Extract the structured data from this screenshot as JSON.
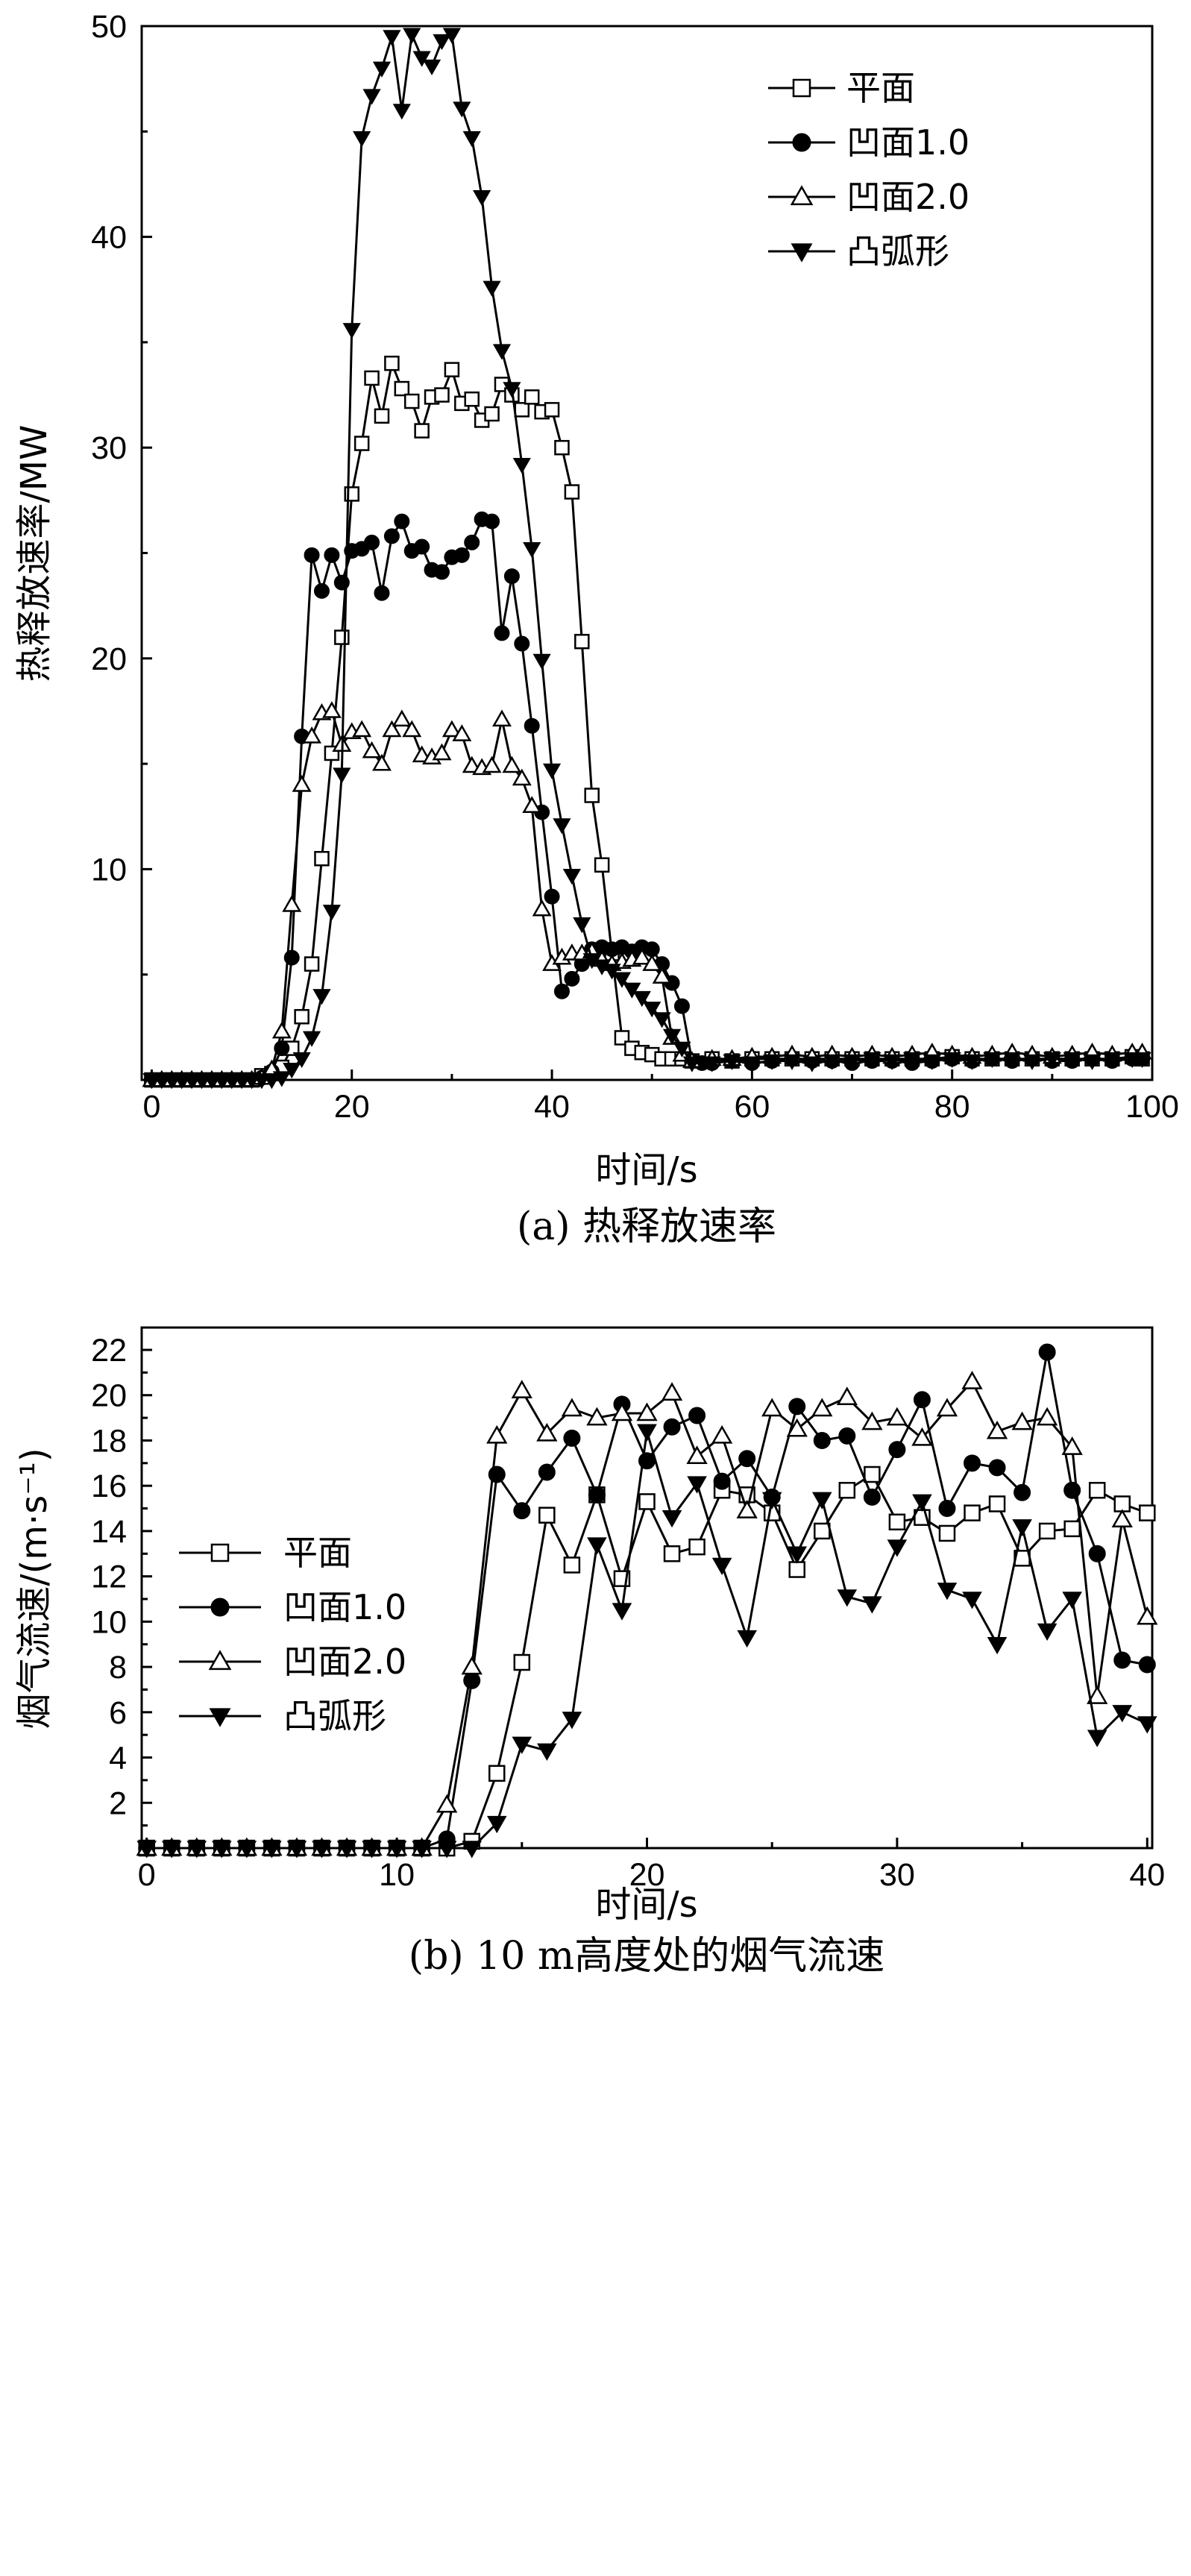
{
  "chart_data": [
    {
      "type": "line",
      "caption": "(a) 热释放速率",
      "xlabel": "时间/s",
      "ylabel": "热释放速率/MW",
      "xlim": [
        -1,
        100
      ],
      "ylim": [
        0,
        50
      ],
      "xticks": [
        0,
        20,
        40,
        60,
        80,
        100
      ],
      "yticks": [
        10,
        20,
        30,
        40,
        50
      ],
      "legend_position": "top-right",
      "series": [
        {
          "name": "平面",
          "marker": "open-square",
          "x": [
            0,
            1,
            2,
            3,
            4,
            5,
            6,
            7,
            8,
            9,
            10,
            11,
            12,
            13,
            14,
            15,
            16,
            17,
            18,
            19,
            20,
            21,
            22,
            23,
            24,
            25,
            26,
            27,
            28,
            29,
            30,
            31,
            32,
            33,
            34,
            35,
            36,
            37,
            38,
            39,
            40,
            41,
            42,
            43,
            44,
            45,
            46,
            47,
            48,
            49,
            50,
            51,
            52,
            53,
            54,
            56,
            58,
            60,
            62,
            64,
            66,
            68,
            70,
            72,
            74,
            76,
            78,
            80,
            82,
            84,
            86,
            88,
            90,
            92,
            94,
            96,
            98,
            99
          ],
          "y": [
            0,
            0,
            0,
            0,
            0,
            0,
            0,
            0,
            0,
            0,
            0,
            0.2,
            0.3,
            0.6,
            1.5,
            3,
            5.5,
            10.5,
            15.5,
            21,
            27.8,
            30.2,
            33.3,
            31.5,
            34,
            32.8,
            32.2,
            30.8,
            32.4,
            32.5,
            33.7,
            32.1,
            32.3,
            31.3,
            31.6,
            33,
            32.5,
            31.8,
            32.4,
            31.7,
            31.8,
            30,
            27.9,
            20.8,
            13.5,
            10.2,
            6,
            2,
            1.5,
            1.3,
            1.2,
            1,
            1,
            1,
            0.9,
            1,
            0.9,
            1,
            1,
            1,
            1,
            1,
            1,
            1,
            1,
            1,
            1,
            1.1,
            1,
            1,
            1,
            1,
            1,
            1,
            1,
            1,
            1.1,
            1
          ]
        },
        {
          "name": "凹面1.0",
          "marker": "filled-circle",
          "x": [
            0,
            1,
            2,
            3,
            4,
            5,
            6,
            7,
            8,
            9,
            10,
            11,
            12,
            13,
            14,
            15,
            16,
            17,
            18,
            19,
            20,
            21,
            22,
            23,
            24,
            25,
            26,
            27,
            28,
            29,
            30,
            31,
            32,
            33,
            34,
            35,
            36,
            37,
            38,
            39,
            40,
            41,
            42,
            43,
            44,
            45,
            46,
            47,
            48,
            49,
            50,
            51,
            52,
            53,
            54,
            55,
            56,
            58,
            60,
            62,
            64,
            66,
            68,
            70,
            72,
            74,
            76,
            78,
            80,
            82,
            84,
            86,
            88,
            90,
            92,
            94,
            96,
            98,
            99
          ],
          "y": [
            0,
            0,
            0,
            0,
            0,
            0,
            0,
            0,
            0,
            0,
            0,
            0.1,
            0.4,
            1.5,
            5.8,
            16.3,
            24.9,
            23.2,
            24.9,
            23.6,
            25.1,
            25.2,
            25.5,
            23.1,
            25.8,
            26.5,
            25.1,
            25.3,
            24.2,
            24.1,
            24.8,
            24.9,
            25.5,
            26.6,
            26.5,
            21.2,
            23.9,
            20.7,
            16.8,
            12.7,
            8.7,
            4.2,
            4.8,
            5.5,
            6.2,
            6.3,
            6.2,
            6.3,
            6.1,
            6.3,
            6.2,
            5.5,
            4.6,
            3.5,
            0.9,
            0.8,
            0.8,
            0.9,
            0.8,
            0.9,
            1,
            0.9,
            0.9,
            0.8,
            0.9,
            0.9,
            0.8,
            0.9,
            1,
            0.9,
            1,
            0.9,
            1,
            0.9,
            0.9,
            1,
            0.9,
            1,
            1
          ]
        },
        {
          "name": "凹面2.0",
          "marker": "open-triangle-up",
          "x": [
            0,
            1,
            2,
            3,
            4,
            5,
            6,
            7,
            8,
            9,
            10,
            11,
            12,
            13,
            14,
            15,
            16,
            17,
            18,
            19,
            20,
            21,
            22,
            23,
            24,
            25,
            26,
            27,
            28,
            29,
            30,
            31,
            32,
            33,
            34,
            35,
            36,
            37,
            38,
            39,
            40,
            41,
            42,
            43,
            44,
            45,
            46,
            47,
            48,
            49,
            50,
            51,
            52,
            53,
            54,
            56,
            58,
            60,
            62,
            64,
            66,
            68,
            70,
            72,
            74,
            76,
            78,
            80,
            82,
            84,
            86,
            88,
            90,
            92,
            94,
            96,
            98,
            99
          ],
          "y": [
            0,
            0,
            0,
            0,
            0,
            0,
            0,
            0,
            0,
            0,
            0,
            0.1,
            0.5,
            2.3,
            8.3,
            14,
            16.3,
            17.4,
            17.5,
            15.9,
            16.5,
            16.6,
            15.6,
            15,
            16.6,
            17.1,
            16.6,
            15.4,
            15.3,
            15.5,
            16.6,
            16.4,
            14.9,
            14.8,
            14.9,
            17.1,
            14.9,
            14.3,
            13,
            8.1,
            5.5,
            5.8,
            6,
            6,
            6.1,
            5.7,
            5.5,
            5.6,
            5.7,
            5.8,
            5.5,
            4.9,
            2,
            1.2,
            0.9,
            1,
            1,
            1.1,
            1.1,
            1.2,
            1.1,
            1.2,
            1.1,
            1.2,
            1.1,
            1.2,
            1.3,
            1.2,
            1.1,
            1.2,
            1.3,
            1.2,
            1.1,
            1.2,
            1.3,
            1.2,
            1.3,
            1.3
          ]
        },
        {
          "name": "凸弧形",
          "marker": "filled-triangle-down",
          "x": [
            0,
            1,
            2,
            3,
            4,
            5,
            6,
            7,
            8,
            9,
            10,
            11,
            12,
            13,
            14,
            15,
            16,
            17,
            18,
            19,
            20,
            21,
            22,
            23,
            24,
            25,
            26,
            27,
            28,
            29,
            30,
            31,
            32,
            33,
            34,
            35,
            36,
            37,
            38,
            39,
            40,
            41,
            42,
            43,
            44,
            45,
            46,
            47,
            48,
            49,
            50,
            51,
            52,
            53,
            54,
            56,
            58,
            60,
            62,
            64,
            66,
            68,
            70,
            72,
            74,
            76,
            78,
            80,
            82,
            84,
            86,
            88,
            90,
            92,
            94,
            96,
            98,
            99
          ],
          "y": [
            0,
            0,
            0,
            0,
            0,
            0,
            0,
            0,
            0,
            0,
            0,
            0,
            0,
            0.1,
            0.5,
            1,
            2,
            4,
            8,
            14.5,
            35.6,
            44.7,
            46.7,
            48,
            49.5,
            46,
            49.6,
            48.5,
            48.1,
            49.3,
            49.6,
            46.1,
            44.7,
            41.9,
            37.6,
            34.6,
            32.8,
            29.2,
            25.2,
            19.9,
            14.7,
            12.1,
            9.7,
            7.4,
            5.7,
            5.4,
            5.2,
            4.8,
            4.3,
            3.9,
            3.4,
            2.9,
            2.1,
            1.5,
            0.8,
            0.8,
            0.9,
            0.8,
            0.9,
            0.9,
            0.8,
            0.9,
            0.9,
            1,
            0.9,
            1,
            0.9,
            1,
            0.9,
            1,
            1,
            0.9,
            1,
            1,
            0.9,
            1,
            1,
            1
          ]
        }
      ]
    },
    {
      "type": "line",
      "caption": "(b) 10 m高度处的烟气流速",
      "xlabel": "时间/s",
      "ylabel": "烟气流速/(m·s⁻¹)",
      "xlim": [
        -0.2,
        40.2
      ],
      "ylim": [
        0,
        22
      ],
      "xticks": [
        0,
        10,
        20,
        30,
        40
      ],
      "yticks": [
        2,
        4,
        6,
        8,
        10,
        12,
        14,
        16,
        18,
        20,
        22
      ],
      "legend_position": "top-left",
      "series": [
        {
          "name": "平面",
          "marker": "open-square",
          "x": [
            0,
            1,
            2,
            3,
            4,
            5,
            6,
            7,
            8,
            9,
            10,
            11,
            12,
            13,
            14,
            15,
            16,
            17,
            18,
            19,
            20,
            21,
            22,
            23,
            24,
            25,
            26,
            27,
            28,
            29,
            30,
            31,
            32,
            33,
            34,
            35,
            36,
            37,
            38,
            39,
            40
          ],
          "y": [
            0,
            0,
            0,
            0,
            0,
            0,
            0,
            0,
            0,
            0,
            0,
            0,
            0,
            0.3,
            3.3,
            8.2,
            14.7,
            12.5,
            15.6,
            11.9,
            15.3,
            13,
            13.3,
            15.8,
            15.6,
            14.8,
            12.3,
            14,
            15.8,
            16.5,
            14.4,
            14.6,
            13.9,
            14.8,
            15.2,
            12.8,
            14,
            14.1,
            15.8,
            15.2,
            14.8
          ]
        },
        {
          "name": "凹面1.0",
          "marker": "filled-circle",
          "x": [
            0,
            1,
            2,
            3,
            4,
            5,
            6,
            7,
            8,
            9,
            10,
            11,
            12,
            13,
            14,
            15,
            16,
            17,
            18,
            19,
            20,
            21,
            22,
            23,
            24,
            25,
            26,
            27,
            28,
            29,
            30,
            31,
            32,
            33,
            34,
            35,
            36,
            37,
            38,
            39,
            40
          ],
          "y": [
            0,
            0,
            0,
            0,
            0,
            0,
            0,
            0,
            0,
            0,
            0,
            0,
            0.4,
            7.4,
            16.5,
            14.9,
            16.6,
            18.1,
            15.6,
            19.6,
            17.1,
            18.6,
            19.1,
            16.2,
            17.2,
            15.5,
            19.5,
            18,
            18.2,
            15.5,
            17.6,
            19.8,
            15,
            17,
            16.8,
            15.7,
            21.9,
            15.8,
            13,
            8.3,
            8.1
          ]
        },
        {
          "name": "凹面2.0",
          "marker": "open-triangle-up",
          "x": [
            0,
            1,
            2,
            3,
            4,
            5,
            6,
            7,
            8,
            9,
            10,
            11,
            12,
            13,
            14,
            15,
            16,
            17,
            18,
            19,
            20,
            21,
            22,
            23,
            24,
            25,
            26,
            27,
            28,
            29,
            30,
            31,
            32,
            33,
            34,
            35,
            36,
            37,
            38,
            39,
            40
          ],
          "y": [
            0,
            0,
            0,
            0,
            0,
            0,
            0,
            0,
            0,
            0,
            0,
            0,
            1.9,
            8,
            18.2,
            20.2,
            18.3,
            19.4,
            19,
            19.2,
            19.2,
            20.1,
            17.3,
            18.2,
            14.9,
            19.4,
            18.5,
            19.4,
            19.9,
            18.8,
            19,
            18.1,
            19.4,
            20.6,
            18.4,
            18.8,
            19,
            17.7,
            6.7,
            14.5,
            10.2
          ]
        },
        {
          "name": "凸弧形",
          "marker": "filled-triangle-down",
          "x": [
            0,
            1,
            2,
            3,
            4,
            5,
            6,
            7,
            8,
            9,
            10,
            11,
            12,
            13,
            14,
            15,
            16,
            17,
            18,
            19,
            20,
            21,
            22,
            23,
            24,
            25,
            26,
            27,
            28,
            29,
            30,
            31,
            32,
            33,
            34,
            35,
            36,
            37,
            38,
            39,
            40
          ],
          "y": [
            0,
            0,
            0,
            0,
            0,
            0,
            0,
            0,
            0,
            0,
            0,
            0,
            0,
            0,
            1.1,
            4.6,
            4.3,
            5.7,
            13.4,
            10.5,
            18.4,
            14.6,
            16.1,
            12.5,
            9.3,
            15.4,
            13,
            15.4,
            11.1,
            10.8,
            13.3,
            15.3,
            11.4,
            11,
            9,
            14.2,
            9.6,
            11,
            4.9,
            6,
            5.5
          ]
        }
      ]
    }
  ]
}
